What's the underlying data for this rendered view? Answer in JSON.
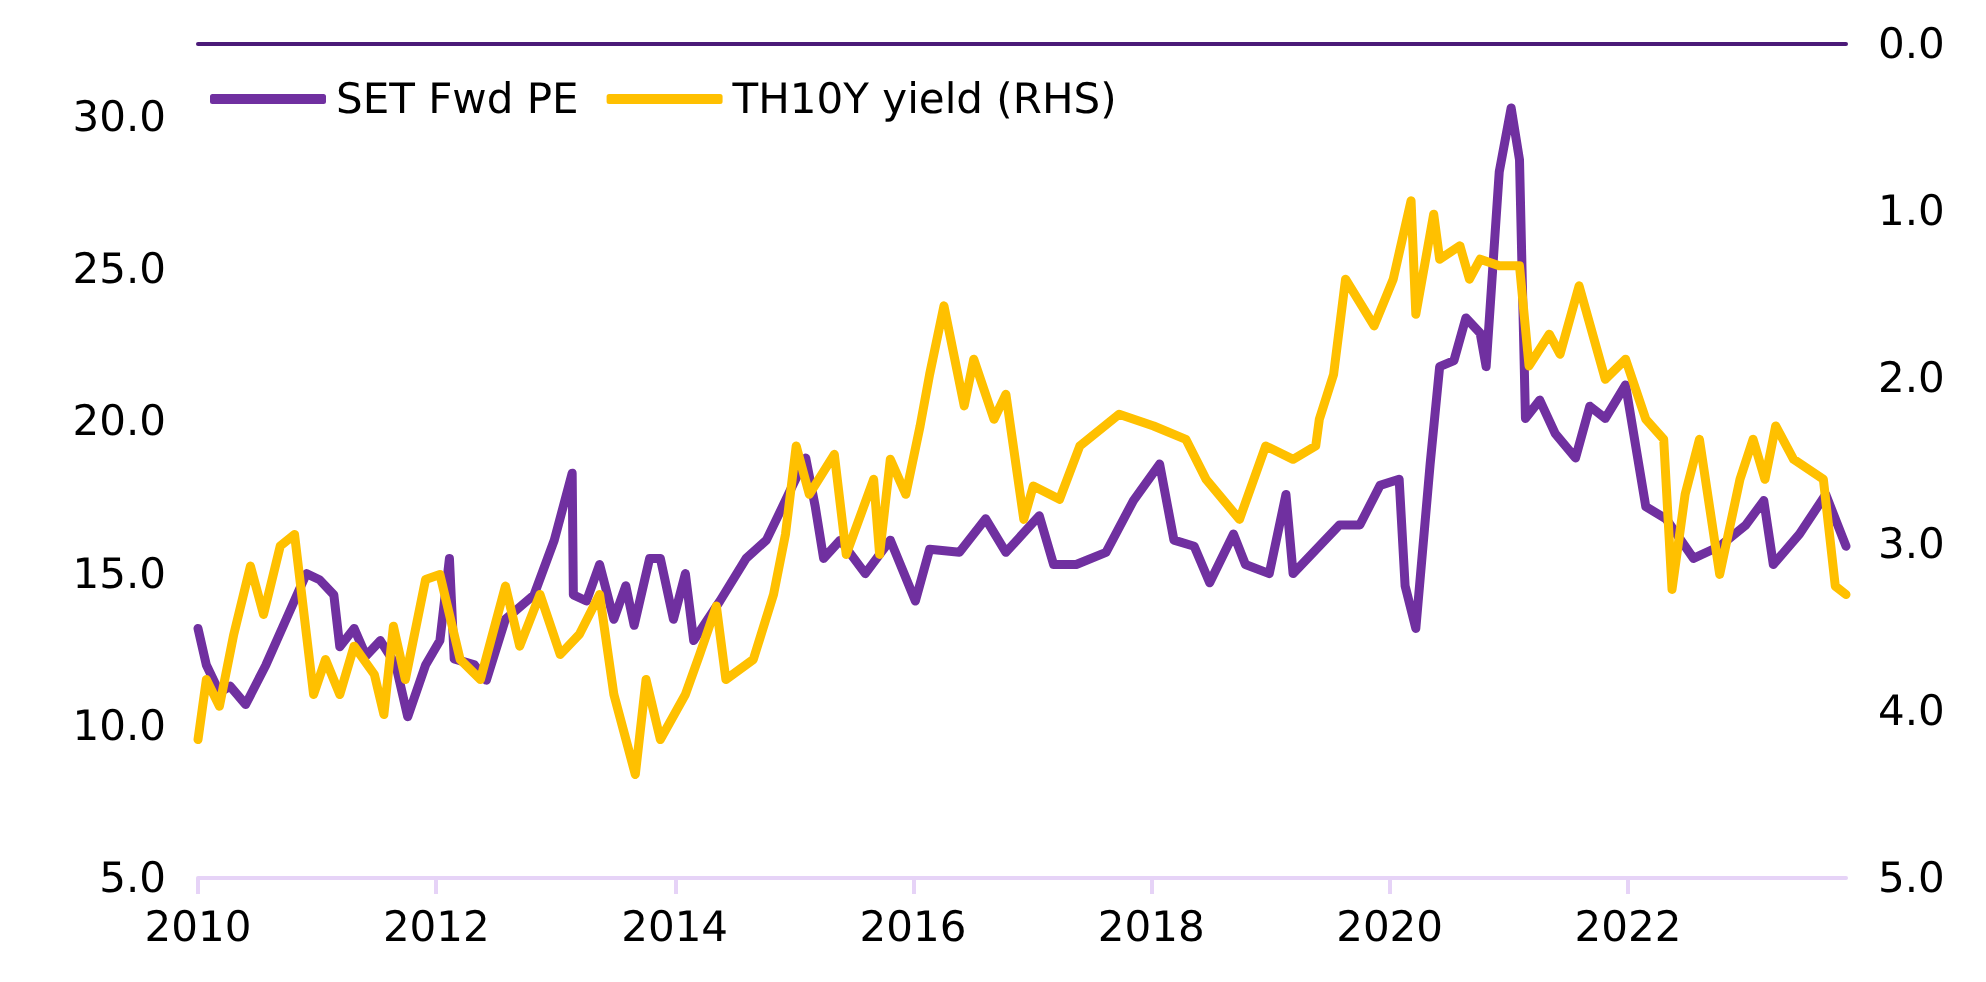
{
  "chart_data": {
    "type": "line",
    "legend": "top left",
    "grid": false,
    "xlim": [
      2010,
      2023.83
    ],
    "xticks": [
      2010,
      2012,
      2014,
      2016,
      2018,
      2020,
      2022
    ],
    "ylim": [
      5,
      32.4
    ],
    "yticks": [
      {
        "value": 5,
        "label": "5.0"
      },
      {
        "value": 10,
        "label": "10.0"
      },
      {
        "value": 15,
        "label": "15.0"
      },
      {
        "value": 20,
        "label": "20.0"
      },
      {
        "value": 25,
        "label": "25.0"
      },
      {
        "value": 30,
        "label": "30.0"
      }
    ],
    "y2lim": [
      5,
      0
    ],
    "y2ticks": [
      {
        "value": 0,
        "label": "0.0"
      },
      {
        "value": 1,
        "label": "1.0"
      },
      {
        "value": 2,
        "label": "2.0"
      },
      {
        "value": 3,
        "label": "3.0"
      },
      {
        "value": 4,
        "label": "4.0"
      },
      {
        "value": 5,
        "label": "5.0"
      }
    ],
    "series": [
      {
        "name": "SET Fwd PE",
        "color": "#7030a0",
        "x": [
          2010,
          2010.07,
          2010.18,
          2010.27,
          2010.4,
          2010.57,
          2010.74,
          2010.91,
          2011.02,
          2011.14,
          2011.19,
          2011.31,
          2011.41,
          2011.53,
          2011.66,
          2011.76,
          2011.91,
          2012.03,
          2012.11,
          2012.15,
          2012.32,
          2012.42,
          2012.58,
          2012.82,
          2012.99,
          2013.14,
          2013.15,
          2013.26,
          2013.37,
          2013.49,
          2013.59,
          2013.66,
          2013.79,
          2013.88,
          2013.99,
          2014.09,
          2014.16,
          2014.38,
          2014.6,
          2014.77,
          2014.93,
          2015.1,
          2015.18,
          2015.25,
          2015.39,
          2015.6,
          2015.81,
          2016.02,
          2016.14,
          2016.39,
          2016.61,
          2016.78,
          2017.06,
          2017.18,
          2017.37,
          2017.62,
          2017.85,
          2018.07,
          2018.19,
          2018.36,
          2018.49,
          2018.69,
          2018.79,
          2018.99,
          2019.13,
          2019.19,
          2019.41,
          2019.58,
          2019.75,
          2019.92,
          2020.08,
          2020.13,
          2020.22,
          2020.34,
          2020.42,
          2020.54,
          2020.64,
          2020.76,
          2020.81,
          2020.92,
          2021.02,
          2021.09,
          2021.14,
          2021.26,
          2021.39,
          2021.56,
          2021.68,
          2021.81,
          2021.98,
          2022.15,
          2022.32,
          2022.55,
          2022.77,
          2022.99,
          2023.14,
          2023.22,
          2023.44,
          2023.66,
          2023.83
        ],
        "values": [
          13.2,
          12.0,
          11.1,
          11.3,
          10.7,
          12.0,
          13.5,
          15.0,
          14.8,
          14.3,
          12.6,
          13.2,
          12.3,
          12.8,
          12.0,
          10.3,
          12.0,
          12.8,
          15.5,
          12.2,
          12.0,
          11.5,
          13.5,
          14.3,
          16.1,
          18.3,
          14.3,
          14.1,
          15.3,
          13.5,
          14.6,
          13.3,
          15.5,
          15.5,
          13.5,
          15.0,
          12.8,
          14.1,
          15.5,
          16.1,
          17.4,
          18.8,
          17.2,
          15.5,
          16.1,
          15.0,
          16.1,
          14.1,
          15.8,
          15.7,
          16.8,
          15.7,
          16.9,
          15.3,
          15.3,
          15.7,
          17.4,
          18.6,
          16.1,
          15.9,
          14.7,
          16.3,
          15.3,
          15.0,
          17.6,
          15.0,
          15.9,
          16.6,
          16.6,
          17.9,
          18.1,
          14.6,
          13.2,
          18.6,
          21.8,
          22.0,
          23.4,
          22.9,
          21.8,
          28.2,
          30.3,
          28.6,
          20.1,
          20.7,
          19.6,
          18.8,
          20.5,
          20.1,
          21.2,
          17.2,
          16.8,
          15.5,
          15.9,
          16.6,
          17.4,
          15.3,
          16.3,
          17.6,
          15.9
        ]
      },
      {
        "name": "TH10Y yield (RHS)",
        "color": "#ffc000",
        "axis": "y2",
        "x": [
          2010,
          2010.07,
          2010.18,
          2010.3,
          2010.44,
          2010.55,
          2010.69,
          2010.81,
          2010.91,
          2010.97,
          2011.07,
          2011.19,
          2011.31,
          2011.48,
          2011.56,
          2011.64,
          2011.74,
          2011.91,
          2012.03,
          2012.2,
          2012.37,
          2012.58,
          2012.7,
          2012.87,
          2013.04,
          2013.2,
          2013.37,
          2013.49,
          2013.67,
          2013.76,
          2013.88,
          2014.09,
          2014.21,
          2014.35,
          2014.43,
          2014.66,
          2014.83,
          2014.93,
          2015.02,
          2015.13,
          2015.34,
          2015.44,
          2015.67,
          2015.72,
          2015.81,
          2015.94,
          2016.06,
          2016.14,
          2016.26,
          2016.43,
          2016.51,
          2016.68,
          2016.78,
          2016.93,
          2017.01,
          2017.23,
          2017.4,
          2017.73,
          2018.02,
          2018.29,
          2018.46,
          2018.74,
          2018.96,
          2019.19,
          2019.38,
          2019.41,
          2019.53,
          2019.63,
          2019.87,
          2020.03,
          2020.18,
          2020.22,
          2020.37,
          2020.42,
          2020.59,
          2020.67,
          2020.76,
          2020.92,
          2021.09,
          2021.17,
          2021.34,
          2021.43,
          2021.59,
          2021.81,
          2021.98,
          2022.15,
          2022.3,
          2022.37,
          2022.48,
          2022.6,
          2022.77,
          2022.94,
          2023.05,
          2023.15,
          2023.24,
          2023.39,
          2023.64,
          2023.74,
          2023.83
        ],
        "values": [
          4.17,
          3.81,
          3.97,
          3.54,
          3.13,
          3.42,
          3.01,
          2.94,
          3.54,
          3.9,
          3.69,
          3.9,
          3.61,
          3.78,
          4.02,
          3.49,
          3.81,
          3.21,
          3.18,
          3.69,
          3.81,
          3.25,
          3.61,
          3.3,
          3.66,
          3.54,
          3.3,
          3.9,
          4.38,
          3.81,
          4.17,
          3.9,
          3.66,
          3.37,
          3.81,
          3.69,
          3.3,
          2.94,
          2.41,
          2.7,
          2.46,
          3.06,
          2.61,
          3.06,
          2.49,
          2.7,
          2.29,
          1.98,
          1.57,
          2.17,
          1.89,
          2.25,
          2.1,
          2.85,
          2.65,
          2.73,
          2.41,
          2.22,
          2.29,
          2.37,
          2.61,
          2.85,
          2.41,
          2.49,
          2.41,
          2.25,
          1.98,
          1.41,
          1.69,
          1.41,
          0.94,
          1.62,
          1.02,
          1.29,
          1.21,
          1.41,
          1.29,
          1.33,
          1.33,
          1.93,
          1.74,
          1.86,
          1.45,
          2.01,
          1.89,
          2.25,
          2.37,
          3.27,
          2.7,
          2.37,
          3.18,
          2.61,
          2.37,
          2.61,
          2.29,
          2.49,
          2.61,
          3.25,
          3.3
        ]
      }
    ]
  }
}
